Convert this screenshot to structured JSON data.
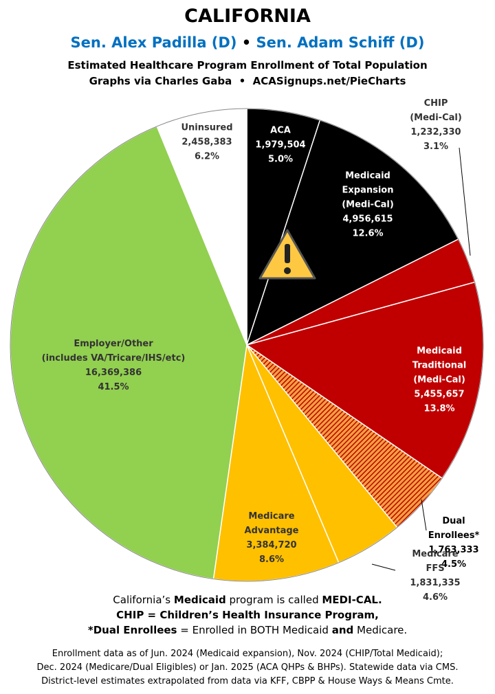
{
  "chart_data": {
    "type": "pie",
    "title": "CALIFORNIA",
    "subtitle": [
      "Sen. Alex Padilla (D)",
      "•",
      "Sen. Adam Schiff (D)"
    ],
    "description": [
      "Estimated Healthcare Program Enrollment of Total Population",
      "Graphs via Charles Gaba  •  ACASignups.net/PieCharts"
    ],
    "categories": [
      "ACA",
      "Medicaid\nExpansion\n(Medi-Cal)",
      "CHIP (Medi-Cal)",
      "Medicaid\nTraditional\n(Medi-Cal)",
      "Dual Enrollees*",
      "Medicare FFS",
      "Medicare\nAdvantage",
      "Employer/Other\n(includes VA/Tricare/IHS/etc)",
      "Uninsured"
    ],
    "values": [
      5.0,
      12.6,
      3.1,
      13.8,
      4.5,
      4.6,
      8.6,
      41.5,
      6.2
    ],
    "value_labels": [
      "5.0%",
      "12.6%",
      "3.1%",
      "13.8%",
      "4.5%",
      "4.6%",
      "8.6%",
      "41.5%",
      "6.2%"
    ],
    "counts": [
      1979504,
      4956615,
      1232330,
      5455657,
      1763333,
      1831335,
      3384720,
      16369386,
      2458383
    ],
    "count_labels": [
      "1,979,504",
      "4,956,615",
      "1,232,330",
      "5,455,657",
      "1,763,333",
      "1,831,335",
      "3,384,720",
      "16,369,386",
      "2,458,383"
    ],
    "colors": [
      "#000000",
      "#000000",
      "#c00000",
      "#c00000",
      "url(#hatch)",
      "#ffc000",
      "#ffc000",
      "#92d050",
      "#ffffff"
    ],
    "notes": [
      [
        {
          "text": "California’s "
        },
        {
          "text": "Medicaid",
          "bold": true
        },
        {
          "text": " program is called "
        },
        {
          "text": "MEDI-CAL.",
          "bold": true
        }
      ],
      [
        {
          "text": "CHIP = Children’s Health Insurance Program,",
          "bold": true
        }
      ],
      [
        {
          "text": "*Dual Enrollees",
          "bold": true
        },
        {
          "text": " = Enrolled in BOTH Medicaid "
        },
        {
          "text": "and",
          "bold": true
        },
        {
          "text": " Medicare."
        }
      ]
    ],
    "footer": [
      "Enrollment data as of Jun. 2024 (Medicaid expansion), Nov. 2024 (CHIP/Total Medicaid);",
      "Dec. 2024 (Medicare/Dual Eligibles) or Jan. 2025 (ACA QHPs & BHPs). Statewide data via CMS.",
      "District-level estimates extrapolated from data via KFF, CBPP & House Ways & Means Cmte."
    ]
  }
}
